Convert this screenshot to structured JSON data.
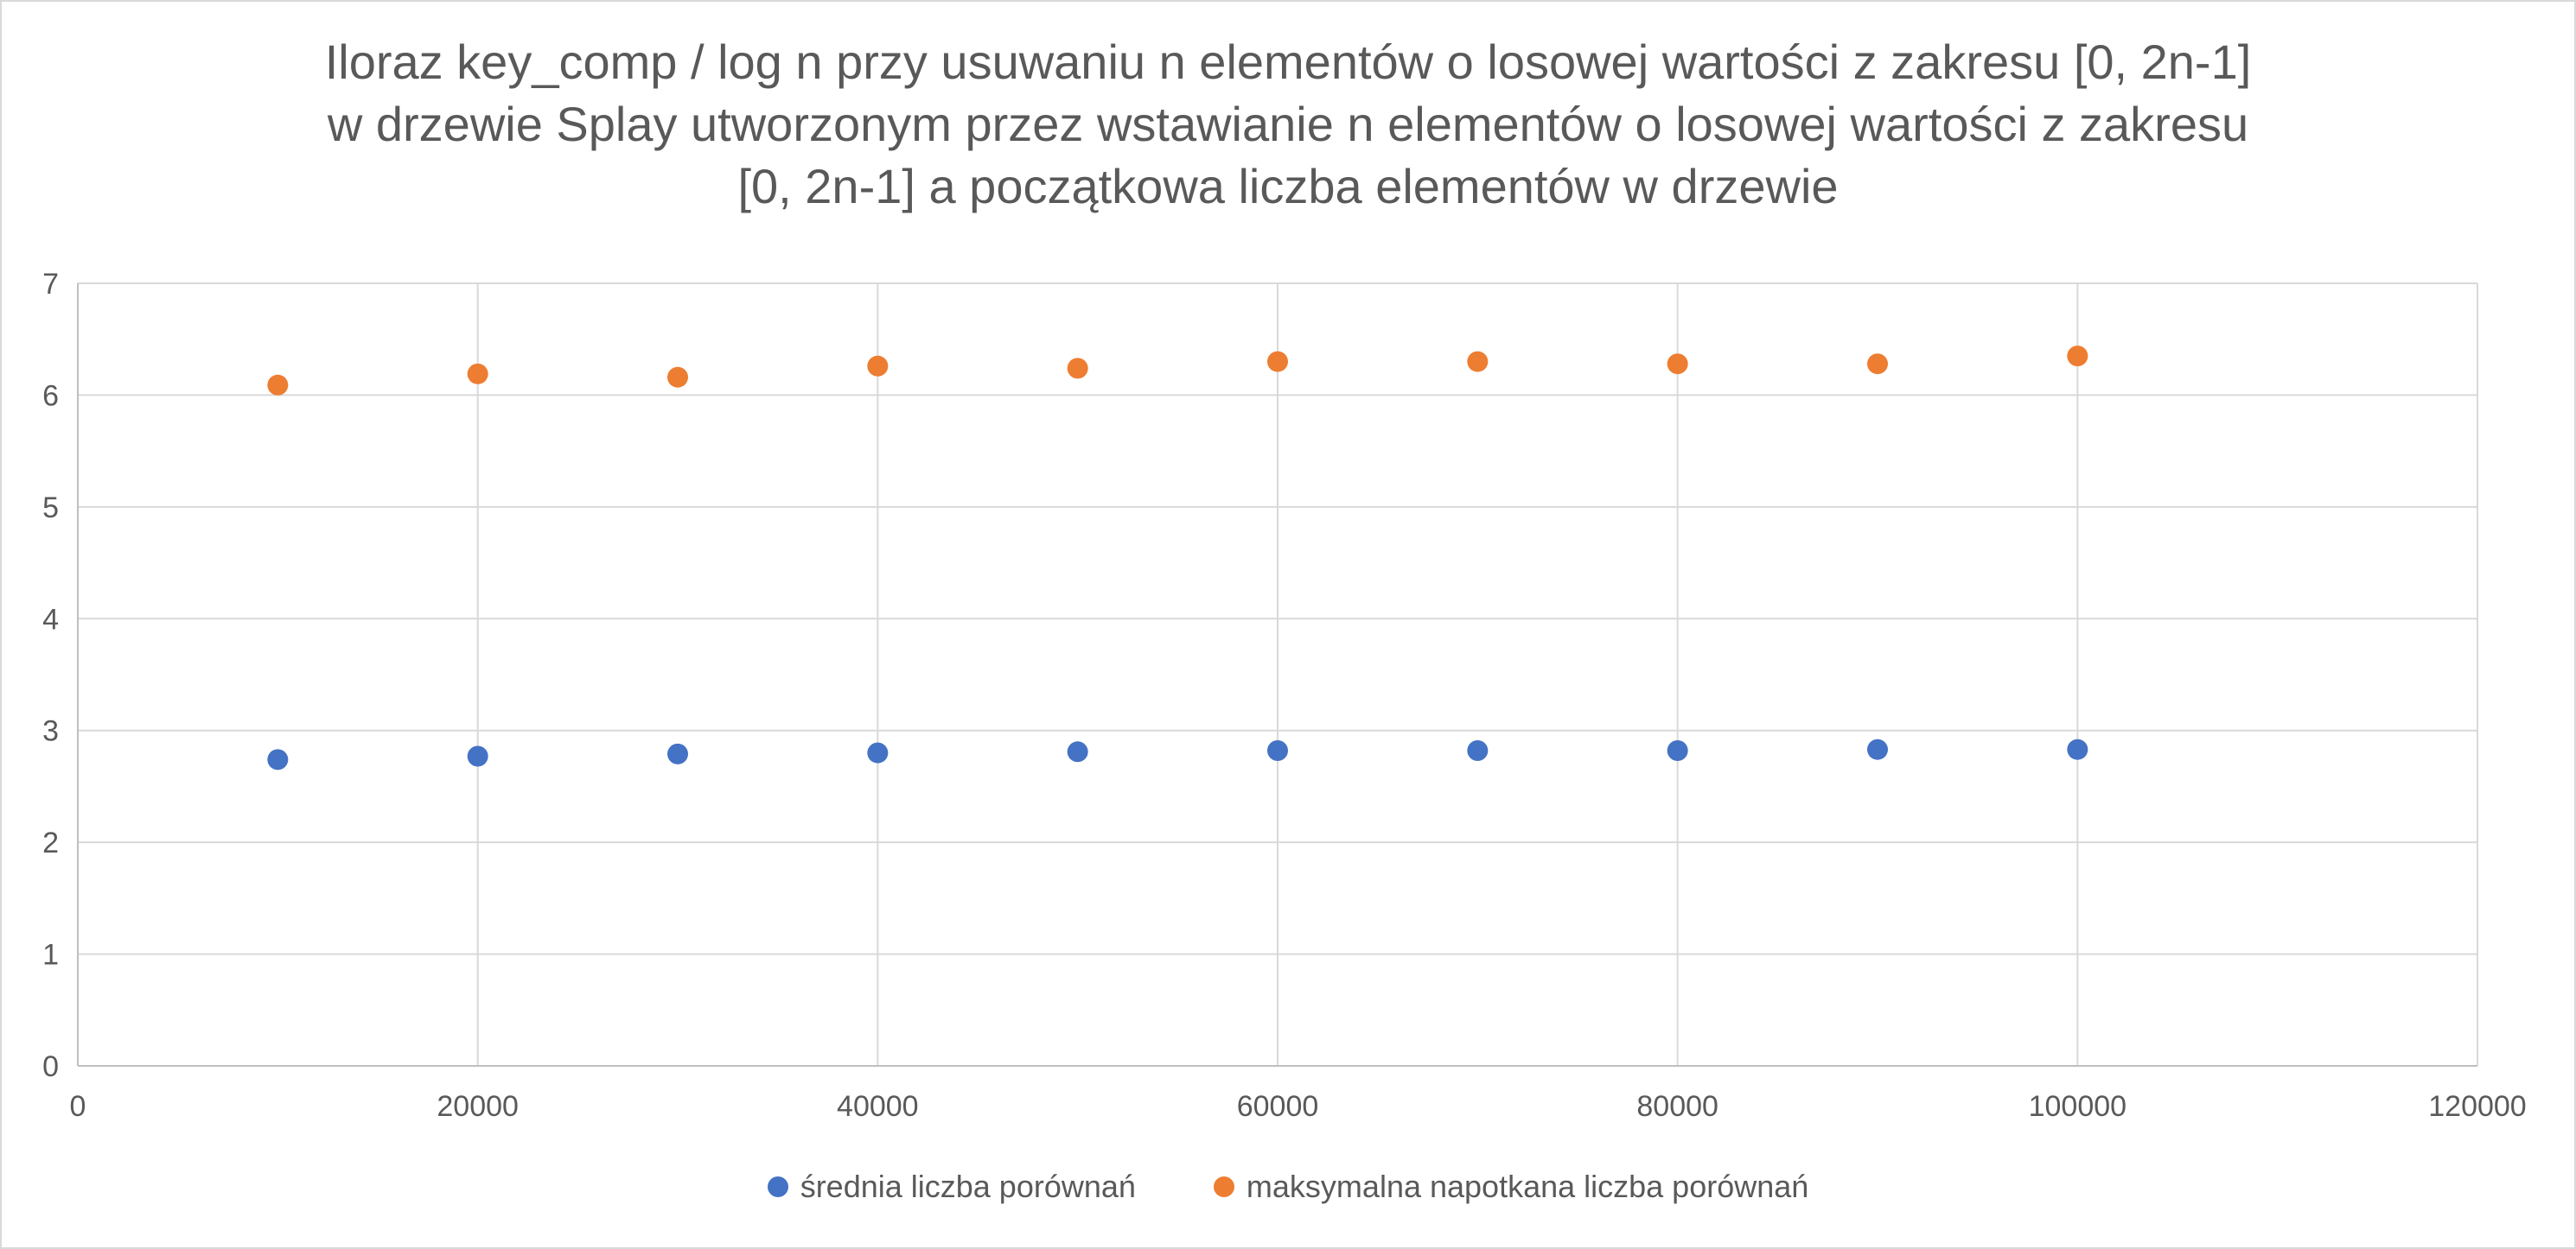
{
  "chart_data": {
    "type": "scatter",
    "title": "Iloraz key_comp / log n przy usuwaniu n elementów o losowej wartości z zakresu [0, 2n-1]\nw drzewie Splay utworzonym przez wstawianie n elementów o losowej wartości z zakresu\n[0, 2n-1] a początkowa liczba elementów w drzewie",
    "xlabel": "",
    "ylabel": "",
    "xlim": [
      0,
      120000
    ],
    "ylim": [
      0,
      7
    ],
    "x_ticks": [
      0,
      20000,
      40000,
      60000,
      80000,
      100000,
      120000
    ],
    "x_tick_labels": [
      "0",
      "20000",
      "40000",
      "60000",
      "80000",
      "100000",
      "120000"
    ],
    "y_ticks": [
      0,
      1,
      2,
      3,
      4,
      5,
      6,
      7
    ],
    "y_tick_labels": [
      "0",
      "1",
      "2",
      "3",
      "4",
      "5",
      "6",
      "7"
    ],
    "grid": true,
    "legend_position": "bottom",
    "x": [
      10000,
      20000,
      30000,
      40000,
      50000,
      60000,
      70000,
      80000,
      90000,
      100000
    ],
    "series": [
      {
        "name": "średnia liczba porównań",
        "color": "#4472C4",
        "values": [
          2.74,
          2.77,
          2.79,
          2.8,
          2.81,
          2.82,
          2.82,
          2.82,
          2.83,
          2.83
        ]
      },
      {
        "name": "maksymalna napotkana liczba porównań",
        "color": "#ED7D31",
        "values": [
          6.09,
          6.19,
          6.16,
          6.26,
          6.24,
          6.3,
          6.3,
          6.28,
          6.28,
          6.35
        ]
      }
    ]
  }
}
